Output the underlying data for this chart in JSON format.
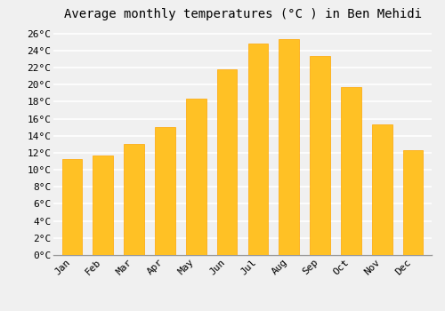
{
  "title": "Average monthly temperatures (°C ) in Ben Mehidi",
  "months": [
    "Jan",
    "Feb",
    "Mar",
    "Apr",
    "May",
    "Jun",
    "Jul",
    "Aug",
    "Sep",
    "Oct",
    "Nov",
    "Dec"
  ],
  "values": [
    11.3,
    11.7,
    13.0,
    15.0,
    18.3,
    21.8,
    24.8,
    25.3,
    23.3,
    19.7,
    15.3,
    12.3
  ],
  "bar_color": "#FFC125",
  "bar_edge_color": "#FFA500",
  "background_color": "#F0F0F0",
  "grid_color": "#FFFFFF",
  "ylim": [
    0,
    27
  ],
  "ytick_step": 2,
  "title_fontsize": 10,
  "tick_fontsize": 8,
  "tick_font_family": "monospace"
}
